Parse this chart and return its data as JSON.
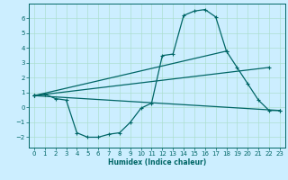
{
  "xlabel": "Humidex (Indice chaleur)",
  "bg_color": "#cceeff",
  "grid_color": "#aaddcc",
  "line_color": "#006666",
  "xlim": [
    -0.5,
    23.5
  ],
  "ylim": [
    -2.7,
    7.0
  ],
  "xticks": [
    0,
    1,
    2,
    3,
    4,
    5,
    6,
    7,
    8,
    9,
    10,
    11,
    12,
    13,
    14,
    15,
    16,
    17,
    18,
    19,
    20,
    21,
    22,
    23
  ],
  "yticks": [
    -2,
    -1,
    0,
    1,
    2,
    3,
    4,
    5,
    6
  ],
  "series": {
    "line1_x": [
      0,
      1,
      2,
      3,
      4,
      5,
      6,
      7,
      8,
      9,
      10,
      11,
      12,
      13,
      14,
      15,
      16,
      17,
      18,
      19,
      20,
      21,
      22,
      23
    ],
    "line1_y": [
      0.8,
      0.9,
      0.6,
      0.5,
      -1.7,
      -2.0,
      -2.0,
      -1.8,
      -1.7,
      -1.0,
      -0.05,
      0.3,
      3.5,
      3.6,
      6.2,
      6.5,
      6.6,
      6.1,
      3.8,
      2.7,
      1.6,
      0.5,
      -0.2,
      -0.2
    ],
    "line2_x": [
      0,
      18
    ],
    "line2_y": [
      0.8,
      3.8
    ],
    "line3_x": [
      0,
      22
    ],
    "line3_y": [
      0.8,
      2.7
    ],
    "line4_x": [
      0,
      23
    ],
    "line4_y": [
      0.8,
      -0.2
    ]
  }
}
